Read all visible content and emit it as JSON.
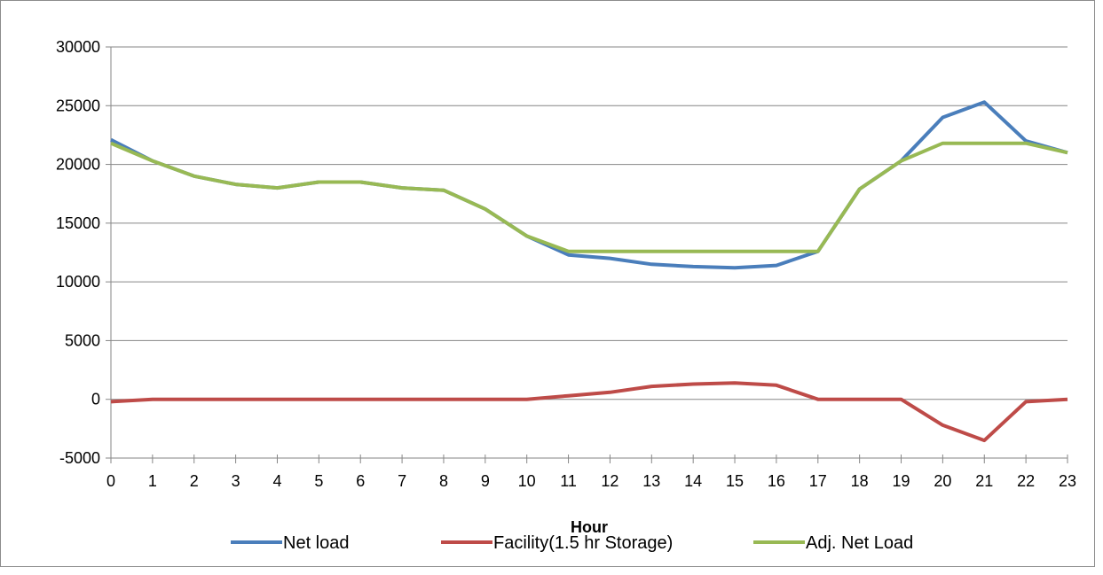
{
  "chart_data": {
    "type": "line",
    "title": "",
    "xlabel": "Hour",
    "ylabel": "",
    "x": [
      0,
      1,
      2,
      3,
      4,
      5,
      6,
      7,
      8,
      9,
      10,
      11,
      12,
      13,
      14,
      15,
      16,
      17,
      18,
      19,
      20,
      21,
      22,
      23
    ],
    "x_tick_labels": [
      "0",
      "1",
      "2",
      "3",
      "4",
      "5",
      "6",
      "7",
      "8",
      "9",
      "10",
      "11",
      "12",
      "13",
      "14",
      "15",
      "16",
      "17",
      "18",
      "19",
      "20",
      "21",
      "22",
      "23"
    ],
    "ylim": [
      -5000,
      30000
    ],
    "y_ticks": [
      -5000,
      0,
      5000,
      10000,
      15000,
      20000,
      25000,
      30000
    ],
    "y_tick_labels": [
      "-5000",
      "0",
      "5000",
      "10000",
      "15000",
      "20000",
      "25000",
      "30000"
    ],
    "grid": "horizontal",
    "legend_position": "bottom",
    "series": [
      {
        "name": "Net load",
        "color": "#4a7ebb",
        "values": [
          22100,
          20300,
          19000,
          18300,
          18000,
          18500,
          18500,
          18000,
          17800,
          16200,
          13900,
          12300,
          12000,
          11500,
          11300,
          11200,
          11400,
          12600,
          17900,
          20300,
          24000,
          25300,
          22000,
          21000
        ]
      },
      {
        "name": "Facility(1.5 hr Storage)",
        "color": "#be4b48",
        "values": [
          -200,
          0,
          0,
          0,
          0,
          0,
          0,
          0,
          0,
          0,
          0,
          300,
          600,
          1100,
          1300,
          1400,
          1200,
          0,
          0,
          0,
          -2200,
          -3500,
          -200,
          0
        ]
      },
      {
        "name": "Adj. Net Load",
        "color": "#98b954",
        "values": [
          21800,
          20300,
          19000,
          18300,
          18000,
          18500,
          18500,
          18000,
          17800,
          16200,
          13900,
          12600,
          12600,
          12600,
          12600,
          12600,
          12600,
          12600,
          17900,
          20300,
          21800,
          21800,
          21800,
          21000
        ]
      }
    ]
  }
}
